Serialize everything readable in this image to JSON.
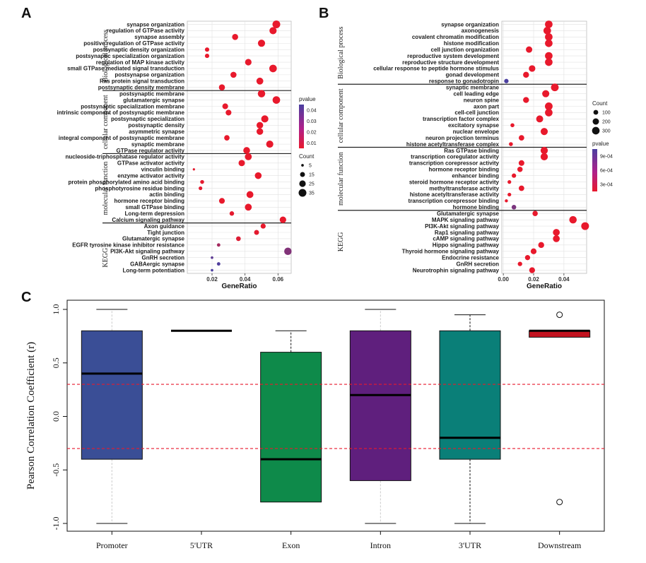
{
  "panels": {
    "a": "A",
    "b": "B",
    "c": "C"
  },
  "chart_data": [
    {
      "type": "scatter",
      "panel": "A",
      "xlabel": "GeneRatio",
      "xlim": [
        0.005,
        0.068
      ],
      "xticks": [
        0.02,
        0.04,
        0.06
      ],
      "xtick_labels": [
        "0.02",
        "0.04",
        "0.06"
      ],
      "grid": true,
      "sections": [
        {
          "name": "Biological process",
          "start": 0,
          "end": 10
        },
        {
          "name": "cellular component",
          "start": 11,
          "end": 20
        },
        {
          "name": "molecular function",
          "start": 21,
          "end": 31
        },
        {
          "name": "KEGG",
          "start": 32,
          "end": 42
        }
      ],
      "size_legend": {
        "title": "Count",
        "values": [
          5,
          15,
          25,
          35
        ],
        "labels": [
          "5",
          "15",
          "25",
          "35"
        ]
      },
      "color_legend": {
        "title": "pvalue",
        "labels": [
          "0.04",
          "0.03",
          "0.02",
          "0.01"
        ],
        "low_color": "#e8192c",
        "high_color": "#4b3fa0"
      },
      "terms": [
        "synapse organization",
        "regulation of GTPase activity",
        "synapse assembly",
        "positive regulation of GTPase activity",
        "postsynaptic density organization",
        "postsynaptic specialization organization",
        "regulation of MAP kinase activity",
        "small GTPase mediated signal transduction",
        "postsynapse organization",
        "Ras protein signal transduction",
        "postsynaptic density membrane",
        "postsynaptic membrane",
        "glutamatergic synapse",
        "postsynaptic specialization membrane",
        "intrinsic component of postsynaptic membrane",
        "postsynaptic specialization",
        "postsynaptic density",
        "asymmetric synapse",
        "integral component of postsynaptic membrane",
        "synaptic membrane",
        "GTPase regulator activity",
        "nucleoside-triphosphatase regulator activity",
        "GTPase activator activity",
        "vinculin binding",
        "enzyme activator activity",
        "protein phosphorylated amino acid binding",
        "phosphotyrosine residue binding",
        "actin binding",
        "hormone receptor binding",
        "small GTPase binding",
        "Long-term depression",
        "Calcium signaling pathway",
        "Axon guidance",
        "Tight junction",
        "Glutamatergic synapse",
        "EGFR tyrosine kinase inhibitor resistance",
        "PI3K-Akt signaling pathway",
        "GnRH secretion",
        "GABAergic synapse",
        "Long-term potentiation"
      ],
      "x": [
        0.059,
        0.057,
        0.034,
        0.05,
        0.017,
        0.017,
        0.042,
        0.057,
        0.033,
        0.049,
        0.026,
        0.05,
        0.059,
        0.028,
        0.03,
        0.052,
        0.049,
        0.049,
        0.029,
        0.055,
        0.041,
        0.042,
        0.038,
        0.009,
        0.048,
        0.014,
        0.013,
        0.043,
        0.026,
        0.042,
        0.032,
        0.063,
        0.051,
        0.047,
        0.036,
        0.024,
        0.066,
        0.02,
        0.024,
        0.02
      ],
      "count": [
        35,
        30,
        22,
        30,
        12,
        12,
        25,
        33,
        22,
        28,
        22,
        32,
        33,
        20,
        20,
        30,
        26,
        26,
        18,
        30,
        27,
        28,
        24,
        4,
        27,
        10,
        9,
        28,
        20,
        28,
        13,
        25,
        16,
        15,
        14,
        8,
        32,
        5,
        8,
        5
      ],
      "pvalue": [
        0.001,
        0.001,
        0.001,
        0.001,
        0.001,
        0.001,
        0.001,
        0.001,
        0.001,
        0.001,
        0.001,
        0.001,
        0.001,
        0.001,
        0.001,
        0.001,
        0.001,
        0.001,
        0.001,
        0.001,
        0.001,
        0.001,
        0.001,
        0.002,
        0.001,
        0.002,
        0.002,
        0.001,
        0.001,
        0.001,
        0.002,
        0.001,
        0.001,
        0.002,
        0.004,
        0.02,
        0.03,
        0.04,
        0.044,
        0.045
      ]
    },
    {
      "type": "scatter",
      "panel": "B",
      "xlabel": "GeneRatio",
      "xlim": [
        -0.001,
        0.055
      ],
      "xticks": [
        0.0,
        0.02,
        0.04
      ],
      "xtick_labels": [
        "0.00",
        "0.02",
        "0.04"
      ],
      "grid": true,
      "sections": [
        {
          "name": "Biological process",
          "start": 0,
          "end": 9
        },
        {
          "name": "cellular component",
          "start": 10,
          "end": 19
        },
        {
          "name": "molecular function",
          "start": 20,
          "end": 29
        },
        {
          "name": "KEGG",
          "start": 30,
          "end": 39
        }
      ],
      "size_legend": {
        "title": "Count",
        "values": [
          100,
          200,
          300
        ],
        "labels": [
          "100",
          "200",
          "300"
        ]
      },
      "color_legend": {
        "title": "pvalue",
        "labels": [
          "9e-04",
          "6e-04",
          "3e-04"
        ],
        "low_color": "#e8192c",
        "high_color": "#4b3fa0"
      },
      "terms": [
        "synapse organization",
        "axonogenesis",
        "covalent chromatin modification",
        "histone modification",
        "cell junction organization",
        "reproductive system development",
        "reproductive structure development",
        "cellular response to peptide hormone stimulus",
        "gonad development",
        "response to gonadotropin",
        "synaptic membrane",
        "cell leading edge",
        "neuron spine",
        "axon part",
        "cell-cell junction",
        "transcription factor complex",
        "excitatory synapse",
        "nuclear envelope",
        "neuron projection terminus",
        "histone acetyltransferase complex",
        "Ras GTPase binding",
        "transcription coregulator activity",
        "transcription corepressor activity",
        "hormone receptor binding",
        "enhancer binding",
        "steroid hormone receptor activity",
        "methyltransferase activity",
        "histone acetyltransferase activity",
        "transcription corepressor binding",
        "hormone binding",
        "Glutamatergic synapse",
        "MAPK signaling pathway",
        "PI3K-Akt signaling pathway",
        "Rap1 signaling pathway",
        "cAMP signaling pathway",
        "Hippo signaling pathway",
        "Thyroid hormone signaling pathway",
        "Endocrine resistance",
        "GnRH secretion",
        "Neurotrophin signaling pathway"
      ],
      "x": [
        0.03,
        0.029,
        0.03,
        0.03,
        0.017,
        0.03,
        0.03,
        0.019,
        0.015,
        0.002,
        0.034,
        0.028,
        0.015,
        0.03,
        0.03,
        0.024,
        0.006,
        0.027,
        0.012,
        0.005,
        0.027,
        0.027,
        0.012,
        0.011,
        0.007,
        0.004,
        0.012,
        0.004,
        0.002,
        0.007,
        0.021,
        0.046,
        0.054,
        0.035,
        0.035,
        0.025,
        0.02,
        0.016,
        0.011,
        0.019
      ],
      "count": [
        300,
        300,
        300,
        300,
        200,
        300,
        300,
        210,
        170,
        80,
        310,
        260,
        170,
        310,
        300,
        250,
        60,
        260,
        140,
        60,
        270,
        270,
        150,
        130,
        80,
        50,
        140,
        50,
        30,
        90,
        130,
        290,
        320,
        240,
        240,
        170,
        160,
        120,
        80,
        160
      ],
      "pvalue": [
        0.0001,
        0.0001,
        0.0001,
        0.0001,
        0.0001,
        0.0001,
        0.0001,
        0.0001,
        0.0001,
        0.0011,
        0.0001,
        0.0001,
        0.0001,
        0.0001,
        0.0001,
        0.0001,
        0.0001,
        0.0001,
        0.0001,
        0.0001,
        0.0001,
        0.0001,
        0.0001,
        0.0001,
        0.0001,
        0.0001,
        0.0001,
        0.0001,
        0.0001,
        0.0008,
        0.0001,
        0.0001,
        0.0001,
        0.0001,
        0.0001,
        0.0001,
        0.0001,
        0.0001,
        0.0001,
        0.0001
      ]
    },
    {
      "type": "box",
      "panel": "C",
      "ylabel": "Pearson Correlation Coefficient (r)",
      "ylim": [
        -1.05,
        1.05
      ],
      "yticks": [
        -1.0,
        -0.5,
        0.0,
        0.5,
        1.0
      ],
      "ytick_labels": [
        "-1.0",
        "-0.5",
        "0.0",
        "0.5",
        "1.0"
      ],
      "threshold_lines": [
        0.3,
        -0.3
      ],
      "threshold_color": "#e8192c",
      "categories": [
        "Promoter",
        "5'UTR",
        "Exon",
        "Intron",
        "3'UTR",
        "Downstream"
      ],
      "boxes": [
        {
          "category": "Promoter",
          "whisker_low": -1.0,
          "q1": -0.4,
          "median": 0.4,
          "q3": 0.8,
          "whisker_high": 1.0,
          "color": "#3a4e96",
          "whisker_color": "#cccccc",
          "outliers": []
        },
        {
          "category": "5'UTR",
          "whisker_low": 0.8,
          "q1": 0.8,
          "median": 0.8,
          "q3": 0.8,
          "whisker_high": 0.8,
          "color": "#000000",
          "whisker_color": "#000000",
          "outliers": []
        },
        {
          "category": "Exon",
          "whisker_low": -0.8,
          "q1": -0.8,
          "median": -0.4,
          "q3": 0.6,
          "whisker_high": 0.8,
          "color": "#0e8a4a",
          "whisker_color": "#111111",
          "outliers": []
        },
        {
          "category": "Intron",
          "whisker_low": -1.0,
          "q1": -0.6,
          "median": 0.2,
          "q3": 0.8,
          "whisker_high": 1.0,
          "color": "#5f1f7d",
          "whisker_color": "#cccccc",
          "outliers": []
        },
        {
          "category": "3'UTR",
          "whisker_low": -1.0,
          "q1": -0.4,
          "median": -0.2,
          "q3": 0.8,
          "whisker_high": 0.95,
          "color": "#0a7f78",
          "whisker_color": "#111111",
          "outliers": []
        },
        {
          "category": "Downstream",
          "whisker_low": 0.74,
          "q1": 0.74,
          "median": 0.8,
          "q3": 0.8,
          "whisker_high": 0.8,
          "color": "#c2121f",
          "whisker_color": "#111111",
          "outliers": [
            0.95,
            -0.8
          ]
        }
      ]
    }
  ]
}
